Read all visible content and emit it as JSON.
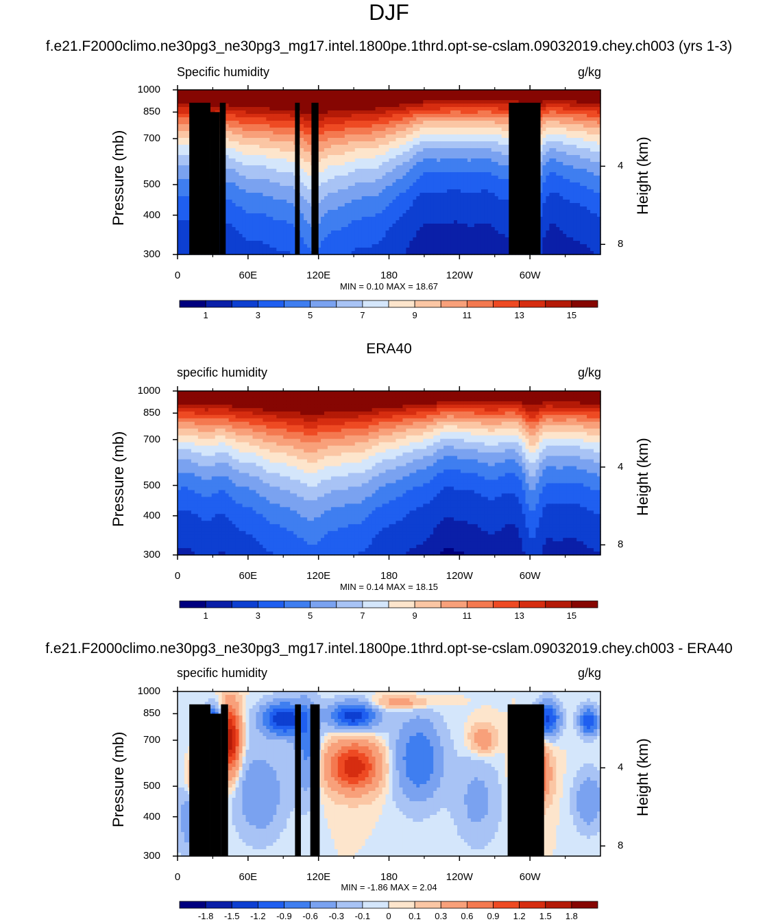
{
  "title": "DJF",
  "colors": {
    "humidity_levels": [
      "#00007f",
      "#0a1fa8",
      "#0d3fd1",
      "#1f5ff0",
      "#3f7ef0",
      "#7aa2f0",
      "#a8c3f5",
      "#d4e6fb",
      "#fde5cc",
      "#fbc6a4",
      "#f8a07a",
      "#f47950",
      "#ee4a23",
      "#d62d10",
      "#b41a07",
      "#860602"
    ],
    "diff_levels": [
      "#00007f",
      "#0a1fa8",
      "#0d3fd1",
      "#1f5ff0",
      "#3f7ef0",
      "#7aa2f0",
      "#a8c3f5",
      "#d4e6fb",
      "#fde5cc",
      "#fbc6a4",
      "#f8a07a",
      "#f47950",
      "#ee4a23",
      "#d62d10",
      "#b41a07",
      "#860602"
    ],
    "topography": "#000000"
  },
  "panels": [
    {
      "title": "f.e21.F2000climo.ne30pg3_ne30pg3_mg17.intel.1800pe.1thrd.opt-se-cslam.09032019.chey.ch003 (yrs 1-3)",
      "left_label": "Specific humidity",
      "right_label": "g/kg",
      "ylabel": "Pressure (mb)",
      "y2label": "Height (km)",
      "minmax": "MIN =   0.10  MAX =  18.67"
    },
    {
      "title": "ERA40",
      "left_label": "specific humidity",
      "right_label": "g/kg",
      "ylabel": "Pressure (mb)",
      "y2label": "Height (km)",
      "minmax": "MIN =   0.14  MAX =  18.15"
    },
    {
      "title": "f.e21.F2000climo.ne30pg3_ne30pg3_mg17.intel.1800pe.1thrd.opt-se-cslam.09032019.chey.ch003 - ERA40",
      "left_label": "specific humidity",
      "right_label": "g/kg",
      "ylabel": "Pressure (mb)",
      "y2label": "Height (km)",
      "minmax": "MIN =  -1.86  MAX =   2.04"
    }
  ],
  "chart_data": [
    {
      "type": "heatmap",
      "title": "f.e21.F2000climo.ne30pg3_ne30pg3_mg17.intel.1800pe.1thrd.opt-se-cslam.09032019.chey.ch003 (yrs 1-3)",
      "variable": "Specific humidity",
      "units": "g/kg",
      "x_ticks": [
        "0",
        "60E",
        "120E",
        "180",
        "120W",
        "60W"
      ],
      "y_ticks": [
        "300",
        "400",
        "500",
        "700",
        "850",
        "1000"
      ],
      "y2_ticks": [
        "8",
        "4"
      ],
      "ylim": [
        1000,
        300
      ],
      "y2_ticks_km": [
        8,
        4
      ],
      "colorbar_labels": [
        "1",
        "3",
        "5",
        "7",
        "9",
        "11",
        "13",
        "15"
      ],
      "contour_levels": [
        0.5,
        1,
        2,
        3,
        4,
        5,
        6,
        7,
        8,
        9,
        10,
        11,
        12,
        13,
        14,
        15
      ],
      "min": 0.1,
      "max": 18.67,
      "topography": [
        [
          10,
          28,
          910
        ],
        [
          28,
          36,
          850
        ],
        [
          36,
          41,
          910
        ],
        [
          100,
          104,
          910
        ],
        [
          114,
          120,
          910
        ],
        [
          282,
          309,
          910
        ]
      ]
    },
    {
      "type": "heatmap",
      "title": "ERA40",
      "variable": "specific humidity",
      "units": "g/kg",
      "x_ticks": [
        "0",
        "60E",
        "120E",
        "180",
        "120W",
        "60W"
      ],
      "y_ticks": [
        "300",
        "400",
        "500",
        "700",
        "850",
        "1000"
      ],
      "y2_ticks": [
        "8",
        "4"
      ],
      "ylim": [
        1000,
        300
      ],
      "y2_ticks_km": [
        8,
        4
      ],
      "colorbar_labels": [
        "1",
        "3",
        "5",
        "7",
        "9",
        "11",
        "13",
        "15"
      ],
      "contour_levels": [
        0.5,
        1,
        2,
        3,
        4,
        5,
        6,
        7,
        8,
        9,
        10,
        11,
        12,
        13,
        14,
        15
      ],
      "min": 0.14,
      "max": 18.15
    },
    {
      "type": "heatmap",
      "title": "f.e21.F2000climo.ne30pg3_ne30pg3_mg17.intel.1800pe.1thrd.opt-se-cslam.09032019.chey.ch003 - ERA40",
      "variable": "specific humidity",
      "units": "g/kg",
      "x_ticks": [
        "0",
        "60E",
        "120E",
        "180",
        "120W",
        "60W"
      ],
      "y_ticks": [
        "300",
        "400",
        "500",
        "700",
        "850",
        "1000"
      ],
      "y2_ticks": [
        "8",
        "4"
      ],
      "ylim": [
        1000,
        300
      ],
      "y2_ticks_km": [
        8,
        4
      ],
      "colorbar_labels": [
        "-1.8",
        "-1.5",
        "-1.2",
        "-0.9",
        "-0.6",
        "-0.3",
        "-0.1",
        "0",
        "0.1",
        "0.3",
        "0.6",
        "0.9",
        "1.2",
        "1.5",
        "1.8"
      ],
      "contour_levels": [
        -1.8,
        -1.5,
        -1.2,
        -0.9,
        -0.6,
        -0.3,
        -0.1,
        0,
        0.1,
        0.3,
        0.6,
        0.9,
        1.2,
        1.5,
        1.8
      ],
      "min": -1.86,
      "max": 2.04,
      "topography": [
        [
          10,
          28,
          910
        ],
        [
          28,
          37,
          850
        ],
        [
          37,
          43,
          910
        ],
        [
          100,
          105,
          910
        ],
        [
          113,
          121,
          910
        ],
        [
          281,
          312,
          910
        ]
      ]
    }
  ]
}
